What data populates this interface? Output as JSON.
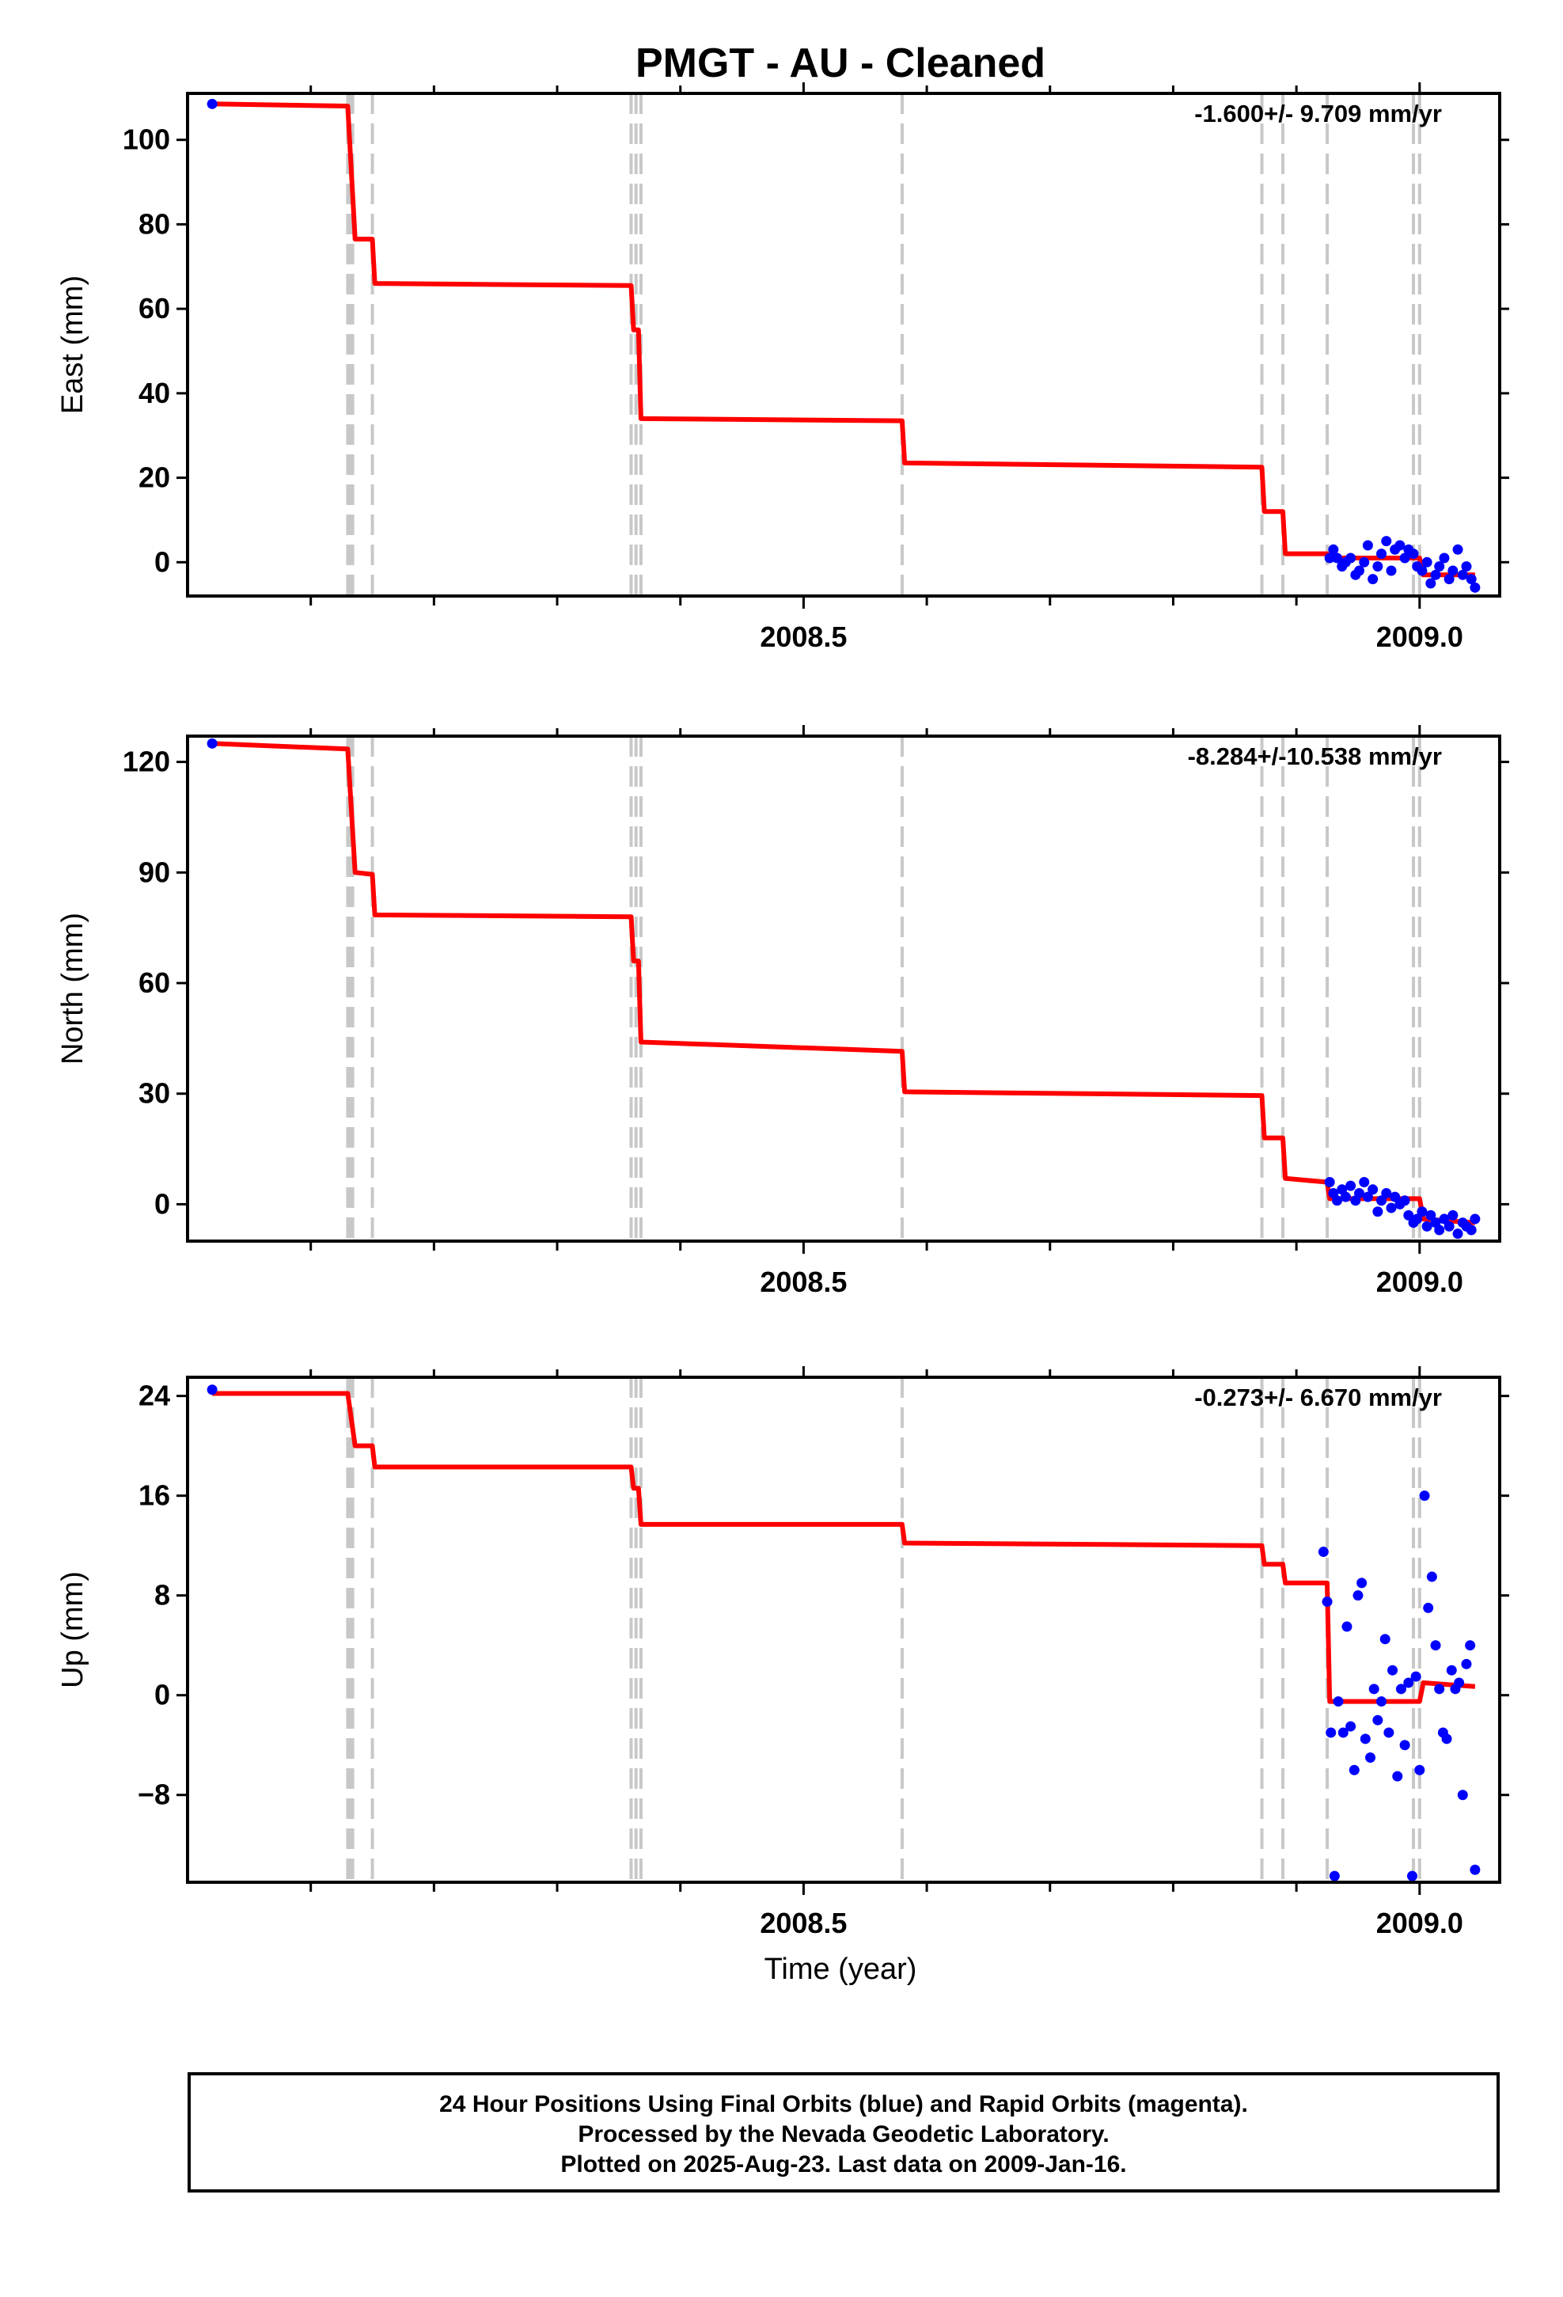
{
  "title": "PMGT  - AU - Cleaned",
  "xlabel": "Time (year)",
  "footer": {
    "line1": "24 Hour Positions Using Final Orbits (blue) and Rapid Orbits (magenta).",
    "line2": "Processed by the Nevada Geodetic Laboratory.",
    "line3": "Plotted on 2025-Aug-23. Last data on 2009-Jan-16."
  },
  "colors": {
    "model_line": "#ff0000",
    "final_orbits": "#0000ff",
    "rapid_orbits": "#ff00ff",
    "event_lines": "#c8c8c8"
  },
  "chart_data": [
    {
      "type": "scatter",
      "ylabel": "East (mm)",
      "rate": "-1.600+/- 9.709 mm/yr",
      "xlim": [
        2008.0,
        2009.065
      ],
      "ylim": [
        -8,
        111
      ],
      "yticks": [
        0,
        20,
        40,
        60,
        80,
        100
      ],
      "xticks_labeled": [
        2008.5,
        2009.0
      ],
      "xtick_labels": [
        "2008.5",
        "2009.0"
      ],
      "xticks_minor": [
        2008.1,
        2008.2,
        2008.3,
        2008.4,
        2008.6,
        2008.7,
        2008.8,
        2008.9
      ],
      "event_lines": [
        2008.13,
        2008.132,
        2008.134,
        2008.15,
        2008.36,
        2008.364,
        2008.368,
        2008.58,
        2008.872,
        2008.889,
        2008.925,
        2008.995,
        2009.0
      ],
      "model_line": {
        "x": [
          2008.02,
          2008.13,
          2008.136,
          2008.15,
          2008.152,
          2008.36,
          2008.362,
          2008.366,
          2008.368,
          2008.58,
          2008.582,
          2008.872,
          2008.874,
          2008.889,
          2008.891,
          2008.925,
          2008.927,
          2009.0,
          2009.003,
          2009.045
        ],
        "y": [
          108.5,
          108,
          76.5,
          76.5,
          66,
          65.5,
          55,
          55,
          34,
          33.5,
          23.5,
          22.5,
          12,
          12,
          2,
          2,
          1,
          1,
          -3,
          -3
        ]
      },
      "points": {
        "x": [
          2008.02,
          2008.927,
          2008.93,
          2008.933,
          2008.937,
          2008.94,
          2008.944,
          2008.948,
          2008.951,
          2008.955,
          2008.958,
          2008.962,
          2008.966,
          2008.969,
          2008.973,
          2008.977,
          2008.98,
          2008.984,
          2008.988,
          2008.991,
          2008.995,
          2008.998,
          2009.002,
          2009.006,
          2009.009,
          2009.013,
          2009.016,
          2009.02,
          2009.024,
          2009.027,
          2009.031,
          2009.035,
          2009.038,
          2009.042,
          2009.045
        ],
        "y": [
          108.5,
          1,
          3,
          1,
          -1,
          0,
          1,
          -3,
          -2,
          0,
          4,
          -4,
          -1,
          2,
          5,
          -2,
          3,
          4,
          1,
          3,
          2,
          -1,
          -2,
          0,
          -5,
          -3,
          -1,
          1,
          -4,
          -2,
          3,
          -3,
          -1,
          -4,
          -6
        ]
      }
    },
    {
      "type": "scatter",
      "ylabel": "North (mm)",
      "rate": "-8.284+/-10.538 mm/yr",
      "xlim": [
        2008.0,
        2009.065
      ],
      "ylim": [
        -10,
        127
      ],
      "yticks": [
        0,
        30,
        60,
        90,
        120
      ],
      "xticks_labeled": [
        2008.5,
        2009.0
      ],
      "xtick_labels": [
        "2008.5",
        "2009.0"
      ],
      "xticks_minor": [
        2008.1,
        2008.2,
        2008.3,
        2008.4,
        2008.6,
        2008.7,
        2008.8,
        2008.9
      ],
      "event_lines": [
        2008.13,
        2008.132,
        2008.134,
        2008.15,
        2008.36,
        2008.364,
        2008.368,
        2008.58,
        2008.872,
        2008.889,
        2008.925,
        2008.995,
        2009.0
      ],
      "model_line": {
        "x": [
          2008.02,
          2008.13,
          2008.136,
          2008.15,
          2008.152,
          2008.36,
          2008.362,
          2008.366,
          2008.368,
          2008.58,
          2008.582,
          2008.872,
          2008.874,
          2008.889,
          2008.891,
          2008.925,
          2008.927,
          2009.0,
          2009.003,
          2009.045
        ],
        "y": [
          125,
          123.5,
          90,
          89.5,
          78.5,
          78,
          66,
          66,
          44,
          41.5,
          30.5,
          29.5,
          18,
          18,
          7,
          6,
          1.5,
          1.5,
          -4,
          -5
        ]
      },
      "points": {
        "x": [
          2008.02,
          2008.927,
          2008.93,
          2008.933,
          2008.937,
          2008.94,
          2008.944,
          2008.948,
          2008.951,
          2008.955,
          2008.958,
          2008.962,
          2008.966,
          2008.969,
          2008.973,
          2008.977,
          2008.98,
          2008.984,
          2008.988,
          2008.991,
          2008.995,
          2008.998,
          2009.002,
          2009.006,
          2009.009,
          2009.013,
          2009.016,
          2009.02,
          2009.024,
          2009.027,
          2009.031,
          2009.035,
          2009.038,
          2009.042,
          2009.045
        ],
        "y": [
          125,
          6,
          3,
          1,
          4,
          2,
          5,
          1,
          3,
          6,
          2,
          4,
          -2,
          1,
          3,
          -1,
          2,
          0,
          1,
          -3,
          -5,
          -4,
          -2,
          -6,
          -3,
          -5,
          -7,
          -4,
          -6,
          -3,
          -8,
          -5,
          -6,
          -7,
          -4
        ]
      }
    },
    {
      "type": "scatter",
      "ylabel": "Up (mm)",
      "rate": "-0.273+/- 6.670 mm/yr",
      "xlim": [
        2008.0,
        2009.065
      ],
      "ylim": [
        -15,
        25.5
      ],
      "yticks": [
        -8,
        0,
        8,
        16,
        24
      ],
      "xticks_labeled": [
        2008.5,
        2009.0
      ],
      "xtick_labels": [
        "2008.5",
        "2009.0"
      ],
      "xticks_minor": [
        2008.1,
        2008.2,
        2008.3,
        2008.4,
        2008.6,
        2008.7,
        2008.8,
        2008.9
      ],
      "event_lines": [
        2008.13,
        2008.132,
        2008.134,
        2008.15,
        2008.36,
        2008.364,
        2008.368,
        2008.58,
        2008.872,
        2008.889,
        2008.925,
        2008.995,
        2009.0
      ],
      "model_line": {
        "x": [
          2008.02,
          2008.13,
          2008.136,
          2008.15,
          2008.152,
          2008.36,
          2008.362,
          2008.366,
          2008.368,
          2008.58,
          2008.582,
          2008.872,
          2008.874,
          2008.889,
          2008.891,
          2008.925,
          2008.927,
          2009.0,
          2009.003,
          2009.045
        ],
        "y": [
          24.2,
          24.2,
          20,
          20,
          18.3,
          18.3,
          16.6,
          16.6,
          13.7,
          13.7,
          12.2,
          12,
          10.5,
          10.5,
          9,
          9,
          -0.5,
          -0.5,
          1,
          0.7
        ]
      },
      "points": {
        "x": [
          2008.02,
          2008.922,
          2008.925,
          2008.928,
          2008.931,
          2008.934,
          2008.938,
          2008.941,
          2008.944,
          2008.947,
          2008.95,
          2008.953,
          2008.956,
          2008.96,
          2008.963,
          2008.966,
          2008.969,
          2008.972,
          2008.975,
          2008.978,
          2008.982,
          2008.985,
          2008.988,
          2008.991,
          2008.994,
          2008.997,
          2009.0,
          2009.004,
          2009.007,
          2009.01,
          2009.013,
          2009.016,
          2009.019,
          2009.022,
          2009.026,
          2009.029,
          2009.032,
          2009.035,
          2009.038,
          2009.041,
          2009.045
        ],
        "y": [
          24.5,
          11.5,
          7.5,
          -3,
          -14.5,
          -0.5,
          -3,
          5.5,
          -2.5,
          -6,
          8,
          9,
          -3.5,
          -5,
          0.5,
          -2,
          -0.5,
          4.5,
          -3,
          2,
          -6.5,
          0.5,
          -4,
          1,
          -14.5,
          1.5,
          -6,
          16,
          7,
          9.5,
          4,
          0.5,
          -3,
          -3.5,
          2,
          0.5,
          1,
          -8,
          2.5,
          4,
          -14
        ]
      }
    }
  ]
}
